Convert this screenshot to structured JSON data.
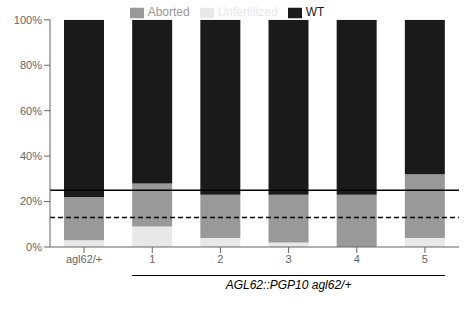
{
  "chart_data": {
    "type": "bar",
    "stacked": true,
    "categories": [
      "agl62/+",
      "1",
      "2",
      "3",
      "4",
      "5"
    ],
    "series": [
      {
        "name": "Unfertilized",
        "color": "#e8e8e8",
        "values": [
          3,
          9,
          4,
          2,
          0,
          4
        ]
      },
      {
        "name": "Aborted",
        "color": "#999999",
        "values": [
          19,
          19,
          19,
          21,
          23,
          28
        ]
      },
      {
        "name": "WT",
        "color": "#1a1a1a",
        "values": [
          78,
          72,
          77,
          77,
          77,
          68
        ]
      }
    ],
    "ylim": [
      0,
      100
    ],
    "yticks": [
      {
        "value": 0,
        "label": "0%"
      },
      {
        "value": 20,
        "label": "20%"
      },
      {
        "value": 40,
        "label": "40%"
      },
      {
        "value": 60,
        "label": "60%"
      },
      {
        "value": 80,
        "label": "80%"
      },
      {
        "value": 100,
        "label": "100%"
      }
    ],
    "legend": "top",
    "grid": false,
    "reference_lines": [
      {
        "y": 25,
        "line_style": "solid",
        "color": "#000000"
      },
      {
        "y": 13,
        "line_style": "dashed",
        "color": "#000000"
      }
    ],
    "group_label": {
      "text": "AGL62::PGP10 agl62/+",
      "from": "1",
      "to": "5",
      "color": "#000000"
    }
  }
}
